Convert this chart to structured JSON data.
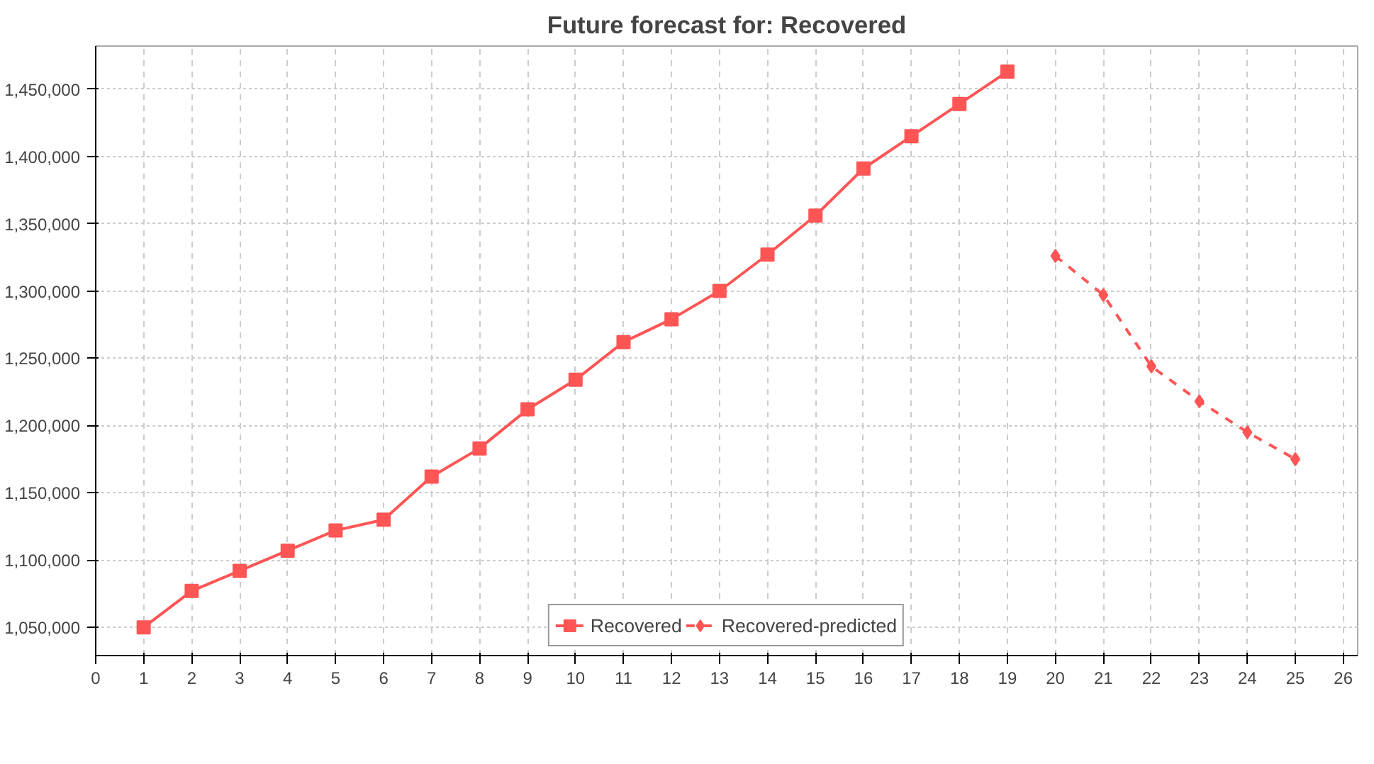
{
  "chart_data": {
    "type": "line",
    "title": "Future forecast for: Recovered",
    "xlim": [
      0,
      26.3
    ],
    "xticks": [
      0,
      1,
      2,
      3,
      4,
      5,
      6,
      7,
      8,
      9,
      10,
      11,
      12,
      13,
      14,
      15,
      16,
      17,
      18,
      19,
      20,
      21,
      22,
      23,
      24,
      25,
      26
    ],
    "ylim": [
      1029000,
      1482000
    ],
    "yticks": [
      {
        "value": 1050000,
        "label": "1,050,000"
      },
      {
        "value": 1100000,
        "label": "1,100,000"
      },
      {
        "value": 1150000,
        "label": "1,150,000"
      },
      {
        "value": 1200000,
        "label": "1,200,000"
      },
      {
        "value": 1250000,
        "label": "1,250,000"
      },
      {
        "value": 1300000,
        "label": "1,300,000"
      },
      {
        "value": 1350000,
        "label": "1,350,000"
      },
      {
        "value": 1400000,
        "label": "1,400,000"
      },
      {
        "value": 1450000,
        "label": "1,450,000"
      }
    ],
    "grid": true,
    "legend": "bottom",
    "series": [
      {
        "name": "Recovered",
        "color": "#ff5555",
        "marker": "square",
        "line_style": "solid",
        "x": [
          1,
          2,
          3,
          4,
          5,
          6,
          7,
          8,
          9,
          10,
          11,
          12,
          13,
          14,
          15,
          16,
          17,
          18,
          19
        ],
        "values": [
          1050000,
          1077000,
          1092000,
          1107000,
          1122000,
          1130000,
          1162000,
          1183000,
          1212000,
          1234000,
          1262000,
          1279000,
          1300000,
          1327000,
          1356000,
          1391000,
          1415000,
          1439000,
          1463000
        ]
      },
      {
        "name": "Recovered-predicted",
        "color": "#ff5555",
        "marker": "diamond",
        "line_style": "dashed",
        "x": [
          20,
          21,
          22,
          23,
          24,
          25
        ],
        "values": [
          1326000,
          1297000,
          1244000,
          1218000,
          1195000,
          1175000
        ]
      }
    ]
  }
}
